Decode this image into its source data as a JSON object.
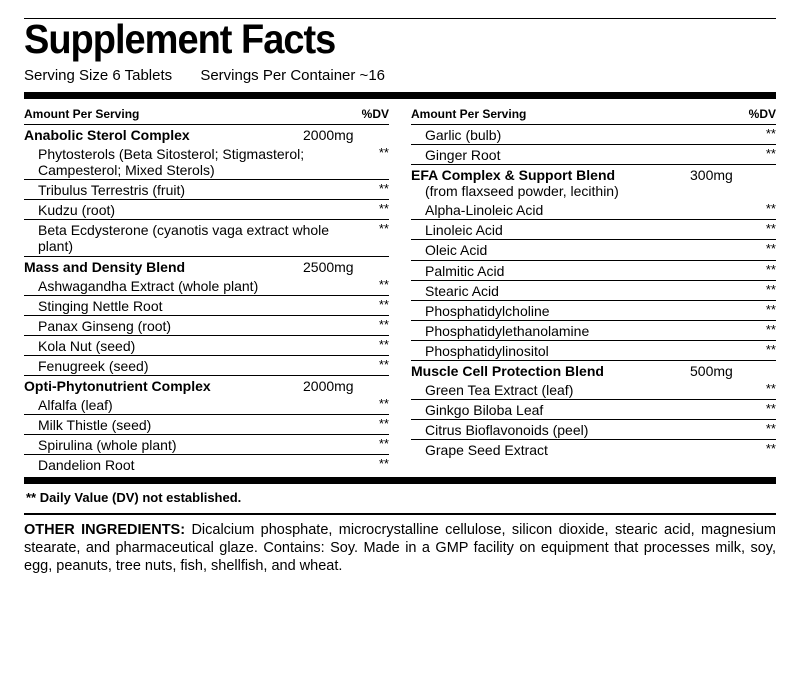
{
  "title": "Supplement Facts",
  "serving_size_label": "Serving Size 6 Tablets",
  "servings_label": "Servings Per Container ~16",
  "header": {
    "aps": "Amount Per Serving",
    "dv": "%DV"
  },
  "left": [
    {
      "type": "section",
      "name": "Anabolic Sterol Complex",
      "amt": "2000mg",
      "border": false
    },
    {
      "type": "sub",
      "name": "Phytosterols (Beta Sitosterol; Stigmasterol; Campesterol; Mixed Sterols)",
      "dv": "**"
    },
    {
      "type": "sub",
      "name": "Tribulus Terrestris (fruit)",
      "dv": "**"
    },
    {
      "type": "sub",
      "name": "Kudzu (root)",
      "dv": "**"
    },
    {
      "type": "sub",
      "name": "Beta Ecdysterone (cyanotis vaga extract whole plant)",
      "dv": "**"
    },
    {
      "type": "section",
      "name": "Mass and Density Blend",
      "amt": "2500mg",
      "border": false
    },
    {
      "type": "sub",
      "name": "Ashwagandha Extract (whole plant)",
      "dv": "**"
    },
    {
      "type": "sub",
      "name": "Stinging Nettle Root",
      "dv": "**"
    },
    {
      "type": "sub",
      "name": "Panax Ginseng (root)",
      "dv": "**"
    },
    {
      "type": "sub",
      "name": "Kola Nut (seed)",
      "dv": "**"
    },
    {
      "type": "sub",
      "name": "Fenugreek (seed)",
      "dv": "**"
    },
    {
      "type": "section",
      "name": "Opti-Phytonutrient Complex",
      "amt": "2000mg",
      "border": false
    },
    {
      "type": "sub",
      "name": "Alfalfa (leaf)",
      "dv": "**"
    },
    {
      "type": "sub",
      "name": "Milk Thistle (seed)",
      "dv": "**"
    },
    {
      "type": "sub",
      "name": "Spirulina (whole plant)",
      "dv": "**"
    },
    {
      "type": "sub",
      "name": "Dandelion Root",
      "dv": "**",
      "last": true
    }
  ],
  "right": [
    {
      "type": "sub",
      "name": "Garlic (bulb)",
      "dv": "**"
    },
    {
      "type": "sub",
      "name": "Ginger Root",
      "dv": "**"
    },
    {
      "type": "sectionsub",
      "name": "EFA Complex & Support Blend",
      "sub": "(from flaxseed powder, lecithin)",
      "amt": "300mg",
      "border": false
    },
    {
      "type": "sub",
      "name": "Alpha-Linoleic Acid",
      "dv": "**"
    },
    {
      "type": "sub",
      "name": "Linoleic Acid",
      "dv": "**"
    },
    {
      "type": "sub",
      "name": "Oleic Acid",
      "dv": "**"
    },
    {
      "type": "sub",
      "name": "Palmitic Acid",
      "dv": "**"
    },
    {
      "type": "sub",
      "name": "Stearic Acid",
      "dv": "**"
    },
    {
      "type": "sub",
      "name": "Phosphatidylcholine",
      "dv": "**"
    },
    {
      "type": "sub",
      "name": "Phosphatidylethanolamine",
      "dv": "**"
    },
    {
      "type": "sub",
      "name": "Phosphatidylinositol",
      "dv": "**"
    },
    {
      "type": "section",
      "name": "Muscle Cell Protection Blend",
      "amt": "500mg",
      "border": false
    },
    {
      "type": "sub",
      "name": "Green Tea Extract (leaf)",
      "dv": "**"
    },
    {
      "type": "sub",
      "name": "Ginkgo Biloba Leaf",
      "dv": "**"
    },
    {
      "type": "sub",
      "name": "Citrus Bioflavonoids (peel)",
      "dv": "**"
    },
    {
      "type": "sub",
      "name": "Grape Seed Extract",
      "dv": "**",
      "last": true
    }
  ],
  "footnote": "** Daily Value (DV) not established.",
  "other_label": "OTHER INGREDIENTS:",
  "other_text": " Dicalcium phosphate, microcrystalline cellulose, silicon dioxide, stearic acid, magnesium stearate, and pharmaceutical glaze. Contains: Soy. Made in a GMP facility on equipment that processes milk, soy, egg, peanuts, tree nuts, fish, shellfish, and wheat."
}
